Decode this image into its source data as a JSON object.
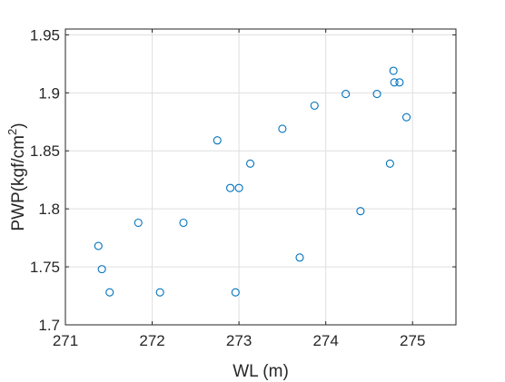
{
  "colors": {
    "marker": "#0072BD",
    "grid": "#dfdfdf",
    "axis": "#262626"
  },
  "chart_data": {
    "type": "scatter",
    "title": "",
    "xlabel": "WL (m)",
    "ylabel": "PWP(kgf/cm",
    "ylabel_superscript": "2",
    "ylabel_suffix": ")",
    "xlim": [
      271,
      275.5
    ],
    "ylim": [
      1.7,
      1.955
    ],
    "xticks": [
      271,
      272,
      273,
      274,
      275
    ],
    "xtick_labels": [
      "271",
      "272",
      "273",
      "274",
      "275"
    ],
    "yticks": [
      1.7,
      1.75,
      1.8,
      1.85,
      1.9,
      1.95
    ],
    "ytick_labels": [
      "1.7",
      "1.75",
      "1.8",
      "1.85",
      "1.9",
      "1.95"
    ],
    "grid": true,
    "marker": "circle-open",
    "series": [
      {
        "points": [
          [
            271.38,
            1.768
          ],
          [
            271.42,
            1.748
          ],
          [
            271.51,
            1.728
          ],
          [
            271.84,
            1.788
          ],
          [
            272.09,
            1.728
          ],
          [
            272.36,
            1.788
          ],
          [
            272.75,
            1.859
          ],
          [
            272.9,
            1.818
          ],
          [
            272.96,
            1.728
          ],
          [
            273.0,
            1.818
          ],
          [
            273.13,
            1.839
          ],
          [
            273.5,
            1.869
          ],
          [
            273.7,
            1.758
          ],
          [
            273.87,
            1.889
          ],
          [
            274.23,
            1.899
          ],
          [
            274.4,
            1.798
          ],
          [
            274.59,
            1.899
          ],
          [
            274.74,
            1.839
          ],
          [
            274.78,
            1.919
          ],
          [
            274.79,
            1.909
          ],
          [
            274.85,
            1.909
          ],
          [
            274.93,
            1.879
          ]
        ]
      }
    ]
  }
}
